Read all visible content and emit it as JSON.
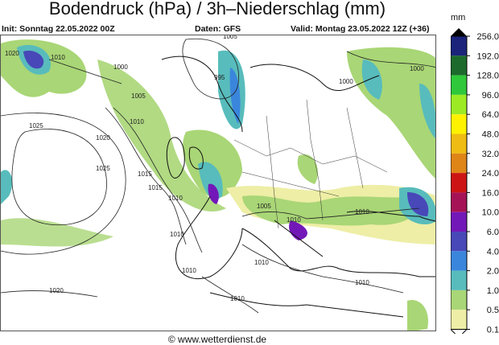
{
  "header": {
    "title": "Bodendruck (hPa) / 3h–Niederschlag (mm)",
    "init": "Init: Sonntag 22.05.2022 00Z",
    "source": "Daten: GFS",
    "valid": "Valid: Montag 23.05.2022 12Z (+36)"
  },
  "legend": {
    "unit": "mm",
    "levels": [
      {
        "label": "256.0",
        "color": "#1b237a"
      },
      {
        "label": "192.0",
        "color": "#1c6a2c"
      },
      {
        "label": "128.0",
        "color": "#2fc83a"
      },
      {
        "label": "96.0",
        "color": "#9cea24"
      },
      {
        "label": "64.0",
        "color": "#fff200"
      },
      {
        "label": "48.0",
        "color": "#eebc12"
      },
      {
        "label": "32.0",
        "color": "#df8518"
      },
      {
        "label": "24.0",
        "color": "#cc1414"
      },
      {
        "label": "16.0",
        "color": "#a61256"
      },
      {
        "label": "10.0",
        "color": "#7318b8"
      },
      {
        "label": "6.0",
        "color": "#4848b8"
      },
      {
        "label": "4.0",
        "color": "#3a86dc"
      },
      {
        "label": "2.0",
        "color": "#58bcbc"
      },
      {
        "label": "1.0",
        "color": "#a9d676"
      },
      {
        "label": "0.5",
        "color": "#eeeea6"
      },
      {
        "label": "0.1",
        "color": ""
      }
    ]
  },
  "map": {
    "isobar_labels": [
      "1005",
      "1010",
      "1000",
      "995",
      "1005",
      "1025",
      "1020",
      "1015",
      "1015",
      "1010",
      "1010",
      "1025",
      "1010",
      "1010",
      "1005",
      "1010",
      "1010",
      "1010",
      "1010",
      "1020",
      "1000",
      "1000",
      "1010",
      "1020"
    ]
  },
  "footer": {
    "copyright": "© www.wetterdienst.de"
  }
}
